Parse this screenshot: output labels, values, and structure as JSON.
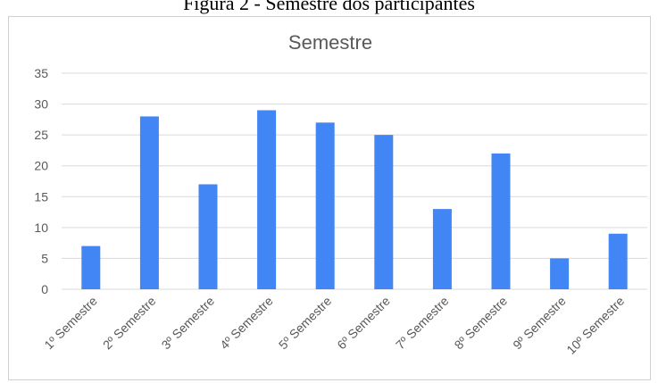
{
  "caption": "Figura 2 - Semestre dos participantes",
  "colors": {
    "bar": "#4285f4",
    "grid": "#d9d9d9",
    "axis_text": "#595959",
    "frame": "#d0d0d0"
  },
  "chart_data": {
    "type": "bar",
    "title": "Semestre",
    "xlabel": "",
    "ylabel": "",
    "categories": [
      "1º Semestre",
      "2º Semestre",
      "3º Semestre",
      "4º Semestre",
      "5º Semestre",
      "6º Semestre",
      "7º Semestre",
      "8º Semestre",
      "9º Semestre",
      "10º Semestre"
    ],
    "values": [
      7,
      28,
      17,
      29,
      27,
      25,
      13,
      22,
      5,
      9
    ],
    "ylim": [
      0,
      35
    ],
    "yticks": [
      0,
      5,
      10,
      15,
      20,
      25,
      30,
      35
    ],
    "grid": true,
    "legend": "none"
  }
}
